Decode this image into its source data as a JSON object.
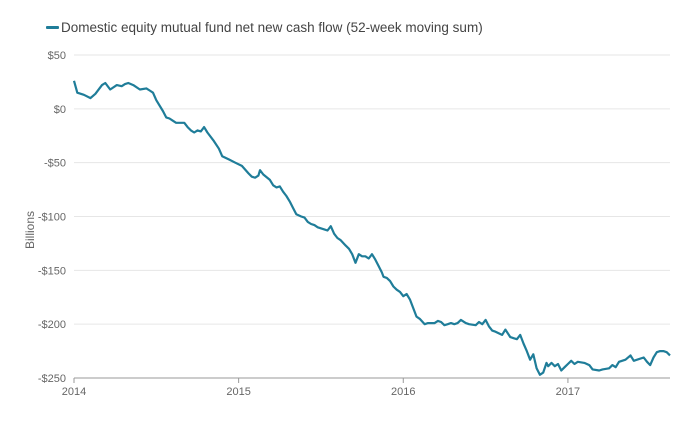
{
  "chart_data": {
    "type": "line",
    "title": "",
    "xlabel": "",
    "ylabel": "Billions",
    "ylim": [
      -250,
      50
    ],
    "xlim": [
      2014.0,
      2017.62
    ],
    "grid": "horizontal",
    "legend_position": "top-left",
    "y_ticks": [
      50,
      0,
      -50,
      -100,
      -150,
      -200,
      -250
    ],
    "y_tick_labels": [
      "$50",
      "$0",
      "-$50",
      "-$100",
      "-$150",
      "-$200",
      "-$250"
    ],
    "x_ticks": [
      2014,
      2015,
      2016,
      2017
    ],
    "x_tick_labels": [
      "2014",
      "2015",
      "2016",
      "2017"
    ],
    "series": [
      {
        "name": "Domestic equity mutual fund net new cash flow (52-week moving sum)",
        "color": "#1f7d99",
        "points": [
          [
            2014.0,
            26
          ],
          [
            2014.02,
            15
          ],
          [
            2014.06,
            13
          ],
          [
            2014.1,
            10
          ],
          [
            2014.13,
            14
          ],
          [
            2014.17,
            22
          ],
          [
            2014.19,
            24
          ],
          [
            2014.22,
            18
          ],
          [
            2014.26,
            22
          ],
          [
            2014.29,
            21
          ],
          [
            2014.31,
            23
          ],
          [
            2014.33,
            24
          ],
          [
            2014.36,
            22
          ],
          [
            2014.4,
            18
          ],
          [
            2014.44,
            19
          ],
          [
            2014.46,
            17
          ],
          [
            2014.48,
            15
          ],
          [
            2014.5,
            8
          ],
          [
            2014.54,
            -2
          ],
          [
            2014.56,
            -8
          ],
          [
            2014.58,
            -9
          ],
          [
            2014.6,
            -11
          ],
          [
            2014.62,
            -13
          ],
          [
            2014.67,
            -13
          ],
          [
            2014.69,
            -17
          ],
          [
            2014.71,
            -20
          ],
          [
            2014.73,
            -22
          ],
          [
            2014.75,
            -20
          ],
          [
            2014.77,
            -21
          ],
          [
            2014.79,
            -17
          ],
          [
            2014.81,
            -22
          ],
          [
            2014.85,
            -30
          ],
          [
            2014.88,
            -37
          ],
          [
            2014.9,
            -44
          ],
          [
            2014.94,
            -47
          ],
          [
            2014.98,
            -50
          ],
          [
            2015.02,
            -53
          ],
          [
            2015.06,
            -60
          ],
          [
            2015.08,
            -63
          ],
          [
            2015.1,
            -64
          ],
          [
            2015.12,
            -62
          ],
          [
            2015.13,
            -57
          ],
          [
            2015.15,
            -61
          ],
          [
            2015.19,
            -66
          ],
          [
            2015.21,
            -71
          ],
          [
            2015.23,
            -73
          ],
          [
            2015.25,
            -72
          ],
          [
            2015.27,
            -77
          ],
          [
            2015.29,
            -81
          ],
          [
            2015.31,
            -86
          ],
          [
            2015.33,
            -92
          ],
          [
            2015.35,
            -98
          ],
          [
            2015.38,
            -100
          ],
          [
            2015.4,
            -101
          ],
          [
            2015.42,
            -105
          ],
          [
            2015.44,
            -107
          ],
          [
            2015.46,
            -108
          ],
          [
            2015.48,
            -110
          ],
          [
            2015.52,
            -112
          ],
          [
            2015.54,
            -113
          ],
          [
            2015.56,
            -109
          ],
          [
            2015.58,
            -116
          ],
          [
            2015.6,
            -120
          ],
          [
            2015.62,
            -122
          ],
          [
            2015.65,
            -127
          ],
          [
            2015.67,
            -130
          ],
          [
            2015.69,
            -135
          ],
          [
            2015.71,
            -143
          ],
          [
            2015.73,
            -135
          ],
          [
            2015.75,
            -137
          ],
          [
            2015.77,
            -137
          ],
          [
            2015.79,
            -139
          ],
          [
            2015.81,
            -135
          ],
          [
            2015.83,
            -140
          ],
          [
            2015.85,
            -146
          ],
          [
            2015.87,
            -152
          ],
          [
            2015.88,
            -156
          ],
          [
            2015.9,
            -157
          ],
          [
            2015.92,
            -160
          ],
          [
            2015.94,
            -165
          ],
          [
            2015.96,
            -168
          ],
          [
            2015.98,
            -170
          ],
          [
            2016.0,
            -174
          ],
          [
            2016.02,
            -172
          ],
          [
            2016.04,
            -177
          ],
          [
            2016.06,
            -185
          ],
          [
            2016.08,
            -193
          ],
          [
            2016.1,
            -195
          ],
          [
            2016.13,
            -200
          ],
          [
            2016.15,
            -199
          ],
          [
            2016.19,
            -199
          ],
          [
            2016.21,
            -197
          ],
          [
            2016.23,
            -198
          ],
          [
            2016.25,
            -201
          ],
          [
            2016.27,
            -200
          ],
          [
            2016.29,
            -199
          ],
          [
            2016.31,
            -200
          ],
          [
            2016.33,
            -199
          ],
          [
            2016.35,
            -196
          ],
          [
            2016.38,
            -199
          ],
          [
            2016.4,
            -200
          ],
          [
            2016.44,
            -201
          ],
          [
            2016.46,
            -198
          ],
          [
            2016.48,
            -200
          ],
          [
            2016.5,
            -196
          ],
          [
            2016.52,
            -202
          ],
          [
            2016.54,
            -206
          ],
          [
            2016.56,
            -207
          ],
          [
            2016.6,
            -210
          ],
          [
            2016.62,
            -205
          ],
          [
            2016.65,
            -212
          ],
          [
            2016.67,
            -213
          ],
          [
            2016.69,
            -214
          ],
          [
            2016.71,
            -210
          ],
          [
            2016.73,
            -218
          ],
          [
            2016.75,
            -225
          ],
          [
            2016.77,
            -233
          ],
          [
            2016.79,
            -228
          ],
          [
            2016.81,
            -241
          ],
          [
            2016.83,
            -247
          ],
          [
            2016.85,
            -245
          ],
          [
            2016.87,
            -236
          ],
          [
            2016.88,
            -239
          ],
          [
            2016.9,
            -236
          ],
          [
            2016.92,
            -239
          ],
          [
            2016.94,
            -237
          ],
          [
            2016.96,
            -243
          ],
          [
            2016.98,
            -240
          ],
          [
            2017.0,
            -237
          ],
          [
            2017.02,
            -234
          ],
          [
            2017.04,
            -237
          ],
          [
            2017.06,
            -235
          ],
          [
            2017.1,
            -236
          ],
          [
            2017.13,
            -238
          ],
          [
            2017.15,
            -242
          ],
          [
            2017.19,
            -243
          ],
          [
            2017.21,
            -242
          ],
          [
            2017.25,
            -241
          ],
          [
            2017.27,
            -238
          ],
          [
            2017.29,
            -240
          ],
          [
            2017.31,
            -235
          ],
          [
            2017.35,
            -233
          ],
          [
            2017.38,
            -229
          ],
          [
            2017.4,
            -234
          ],
          [
            2017.42,
            -233
          ],
          [
            2017.46,
            -231
          ],
          [
            2017.48,
            -235
          ],
          [
            2017.5,
            -238
          ],
          [
            2017.52,
            -231
          ],
          [
            2017.54,
            -226
          ],
          [
            2017.56,
            -225
          ],
          [
            2017.58,
            -225
          ],
          [
            2017.6,
            -226
          ],
          [
            2017.62,
            -229
          ]
        ]
      }
    ]
  }
}
